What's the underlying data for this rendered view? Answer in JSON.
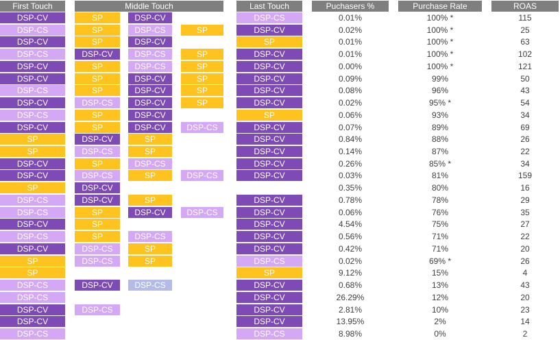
{
  "headers": {
    "first": "First Touch",
    "middle": "Middle Touch",
    "last": "Last Touch",
    "purchasers": "Puchasers %",
    "rate": "Purchase Rate",
    "roas": "ROAS"
  },
  "colors": {
    "DSP-CV": "#7e4ab5",
    "DSP-CS": "#d4a8f5",
    "SP": "#ffc31f",
    "DSP-CS-muted": "#b4bbe6",
    "header": "#7f7f7f"
  },
  "chart_data": {
    "type": "table",
    "columns": [
      "First Touch",
      "Middle Touch",
      "Last Touch",
      "Puchasers %",
      "Purchase Rate",
      "ROAS"
    ],
    "rows": [
      {
        "first": "DSP-CV",
        "middle": [
          "SP",
          "DSP-CV",
          ""
        ],
        "last": "DSP-CS",
        "purchasers": "0.01%",
        "rate": "100%",
        "star": true,
        "roas": "115"
      },
      {
        "first": "DSP-CS",
        "middle": [
          "SP",
          "DSP-CS",
          "SP"
        ],
        "last": "DSP-CV",
        "purchasers": "0.02%",
        "rate": "100%",
        "star": true,
        "roas": "25"
      },
      {
        "first": "DSP-CV",
        "middle": [
          "SP",
          "DSP-CV",
          ""
        ],
        "last": "SP",
        "purchasers": "0.01%",
        "rate": "100%",
        "star": true,
        "roas": "63"
      },
      {
        "first": "DSP-CS",
        "middle": [
          "DSP-CV",
          "DSP-CS",
          "SP"
        ],
        "last": "DSP-CV",
        "purchasers": "0.01%",
        "rate": "100%",
        "star": true,
        "roas": "102"
      },
      {
        "first": "DSP-CV",
        "middle": [
          "SP",
          "DSP-CS",
          "SP"
        ],
        "last": "DSP-CV",
        "purchasers": "0.00%",
        "rate": "100%",
        "star": true,
        "roas": "121"
      },
      {
        "first": "DSP-CV",
        "middle": [
          "SP",
          "DSP-CV",
          "SP"
        ],
        "last": "DSP-CV",
        "purchasers": "0.09%",
        "rate": "99%",
        "star": false,
        "roas": "50"
      },
      {
        "first": "DSP-CS",
        "middle": [
          "SP",
          "DSP-CV",
          "SP"
        ],
        "last": "DSP-CV",
        "purchasers": "0.08%",
        "rate": "96%",
        "star": false,
        "roas": "43"
      },
      {
        "first": "DSP-CV",
        "middle": [
          "DSP-CS",
          "DSP-CV",
          "SP"
        ],
        "last": "DSP-CV",
        "purchasers": "0.02%",
        "rate": "95%",
        "star": true,
        "roas": "54"
      },
      {
        "first": "DSP-CS",
        "middle": [
          "SP",
          "DSP-CV",
          ""
        ],
        "last": "SP",
        "purchasers": "0.06%",
        "rate": "93%",
        "star": false,
        "roas": "34"
      },
      {
        "first": "DSP-CV",
        "middle": [
          "SP",
          "DSP-CV",
          "DSP-CS"
        ],
        "last": "DSP-CV",
        "purchasers": "0.07%",
        "rate": "89%",
        "star": false,
        "roas": "69"
      },
      {
        "first": "SP",
        "middle": [
          "DSP-CV",
          "SP",
          ""
        ],
        "last": "DSP-CV",
        "purchasers": "0.84%",
        "rate": "88%",
        "star": false,
        "roas": "26"
      },
      {
        "first": "SP",
        "middle": [
          "DSP-CS",
          "SP",
          ""
        ],
        "last": "DSP-CV",
        "purchasers": "0.14%",
        "rate": "87%",
        "star": false,
        "roas": "22"
      },
      {
        "first": "DSP-CV",
        "middle": [
          "SP",
          "DSP-CS",
          ""
        ],
        "last": "DSP-CV",
        "purchasers": "0.26%",
        "rate": "85%",
        "star": true,
        "roas": "34"
      },
      {
        "first": "DSP-CV",
        "middle": [
          "DSP-CS",
          "SP",
          "DSP-CS"
        ],
        "last": "DSP-CV",
        "purchasers": "0.03%",
        "rate": "81%",
        "star": false,
        "roas": "159"
      },
      {
        "first": "SP",
        "middle": [
          "DSP-CV",
          "",
          ""
        ],
        "last": "",
        "purchasers": "0.35%",
        "rate": "80%",
        "star": false,
        "roas": "16"
      },
      {
        "first": "DSP-CS",
        "middle": [
          "DSP-CV",
          "SP",
          ""
        ],
        "last": "DSP-CV",
        "purchasers": "0.78%",
        "rate": "78%",
        "star": false,
        "roas": "29"
      },
      {
        "first": "DSP-CS",
        "middle": [
          "SP",
          "DSP-CV",
          "DSP-CS"
        ],
        "last": "DSP-CV",
        "purchasers": "0.06%",
        "rate": "76%",
        "star": false,
        "roas": "35"
      },
      {
        "first": "DSP-CV",
        "middle": [
          "SP",
          "",
          ""
        ],
        "last": "DSP-CV",
        "purchasers": "4.54%",
        "rate": "75%",
        "star": false,
        "roas": "27"
      },
      {
        "first": "DSP-CS",
        "middle": [
          "SP",
          "DSP-CS",
          ""
        ],
        "last": "DSP-CV",
        "purchasers": "0.56%",
        "rate": "71%",
        "star": false,
        "roas": "22"
      },
      {
        "first": "DSP-CV",
        "middle": [
          "DSP-CS",
          "SP",
          ""
        ],
        "last": "DSP-CV",
        "purchasers": "0.42%",
        "rate": "71%",
        "star": false,
        "roas": "20"
      },
      {
        "first": "SP",
        "middle": [
          "DSP-CS",
          "SP",
          ""
        ],
        "last": "DSP-CS",
        "purchasers": "0.02%",
        "rate": "69%",
        "star": true,
        "roas": "26"
      },
      {
        "first": "SP",
        "middle": [
          "",
          "",
          ""
        ],
        "last": "SP",
        "purchasers": "9.12%",
        "rate": "15%",
        "star": false,
        "roas": "4"
      },
      {
        "first": "DSP-CS",
        "middle": [
          "DSP-CV",
          "DSP-CS-muted",
          ""
        ],
        "last": "DSP-CV",
        "purchasers": "0.68%",
        "rate": "13%",
        "star": false,
        "roas": "43"
      },
      {
        "first": "DSP-CS",
        "middle": [
          "",
          "",
          ""
        ],
        "last": "DSP-CV",
        "purchasers": "26.29%",
        "rate": "12%",
        "star": false,
        "roas": "20"
      },
      {
        "first": "DSP-CV",
        "middle": [
          "DSP-CS",
          "",
          ""
        ],
        "last": "DSP-CV",
        "purchasers": "2.81%",
        "rate": "10%",
        "star": false,
        "roas": "23"
      },
      {
        "first": "DSP-CV",
        "middle": [
          "",
          "",
          ""
        ],
        "last": "DSP-CV",
        "purchasers": "13.95%",
        "rate": "2%",
        "star": false,
        "roas": "14"
      },
      {
        "first": "DSP-CS",
        "middle": [
          "",
          "",
          ""
        ],
        "last": "DSP-CS",
        "purchasers": "8.98%",
        "rate": "0%",
        "star": false,
        "roas": "2"
      }
    ]
  }
}
